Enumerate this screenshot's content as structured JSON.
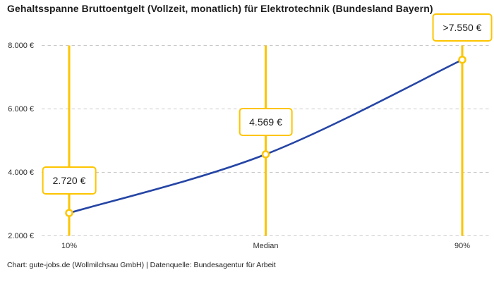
{
  "title": "Gehaltsspanne Bruttoentgelt (Vollzeit, monatlich) für Elektrotechnik (Bundesland Bayern)",
  "footer": "Chart: gute-jobs.de (Wollmilchsau GmbH) | Datenquelle: Bundesagentur für Arbeit",
  "colors": {
    "accent_yellow": "#fdc500",
    "line_blue": "#2545a5",
    "grid_gray": "#c9c9c9",
    "title_text": "#1d1d1d",
    "marker_fill": "#ffffff"
  },
  "chart_data": {
    "type": "line",
    "title": "Gehaltsspanne Bruttoentgelt (Vollzeit, monatlich) für Elektrotechnik (Bundesland Bayern)",
    "categories": [
      "10%",
      "Median",
      "90%"
    ],
    "values": [
      2720,
      4569,
      7550
    ],
    "value_labels": [
      "2.720 €",
      "4.569 €",
      ">7.550 €"
    ],
    "series": [
      {
        "name": "Bruttoentgelt",
        "values": [
          2720,
          4569,
          7550
        ]
      }
    ],
    "xlabel": "",
    "ylabel": "",
    "ylim": [
      2000,
      8000
    ],
    "yticks_top_to_bottom": [
      "8.000 €",
      "6.000 €",
      "4.000 €",
      "2.000 €"
    ],
    "grid": "horizontal-dashed",
    "legend": "none",
    "source": "Bundesagentur für Arbeit",
    "note_90th": "value shown as greater-than 7.550 €"
  }
}
